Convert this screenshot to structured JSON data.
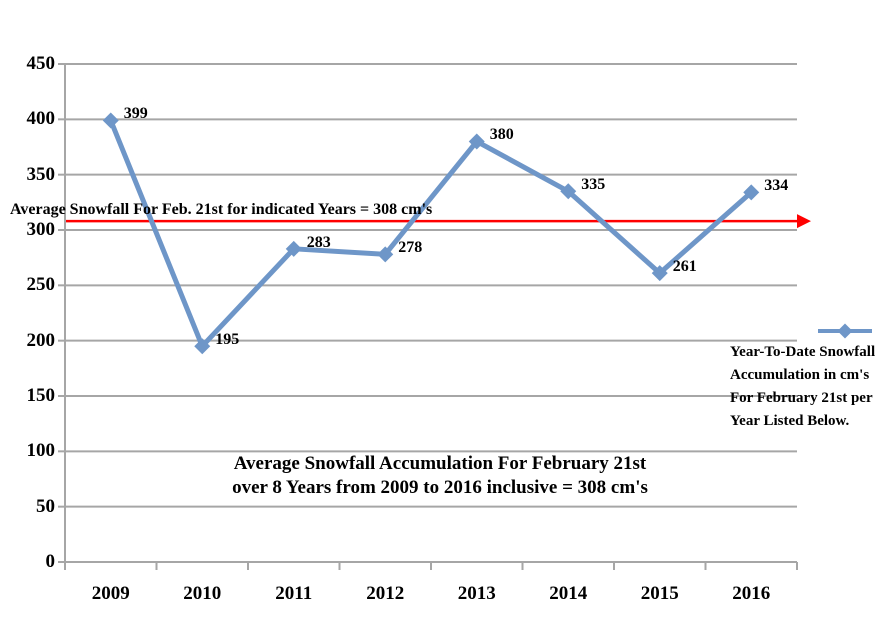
{
  "chart_data": {
    "type": "line",
    "title": "",
    "categories": [
      "2009",
      "2010",
      "2011",
      "2012",
      "2013",
      "2014",
      "2015",
      "2016"
    ],
    "series": [
      {
        "name": "Year-To-Date Snowfall Accumulation in cm's For February 21st per Year Listed Below.",
        "values": [
          399,
          195,
          283,
          278,
          380,
          335,
          261,
          334
        ],
        "color": "#6E96C8",
        "marker": "diamond"
      }
    ],
    "xlabel": "",
    "ylabel": "",
    "ylim": [
      0,
      450
    ],
    "ytick_step": 50,
    "grid": true,
    "legend_position": "right",
    "average_line": {
      "value": 308,
      "color": "#FF0000",
      "label": "Average Snowfall For Feb. 21st for indicated Years = 308 cm's"
    },
    "annotations": {
      "center_line1": "Average Snowfall Accumulation For February 21st",
      "center_line2": "over 8 Years from 2009 to 2016 inclusive = 308 cm's"
    },
    "legend": {
      "lines": [
        "Year-To-Date Snowfall",
        "Accumulation in cm's",
        "For February 21st per",
        "Year Listed Below."
      ]
    },
    "colors": {
      "grid": "#A6A6A6",
      "axis": "#A6A6A6",
      "text": "#000000",
      "background": "#FFFFFF"
    }
  }
}
